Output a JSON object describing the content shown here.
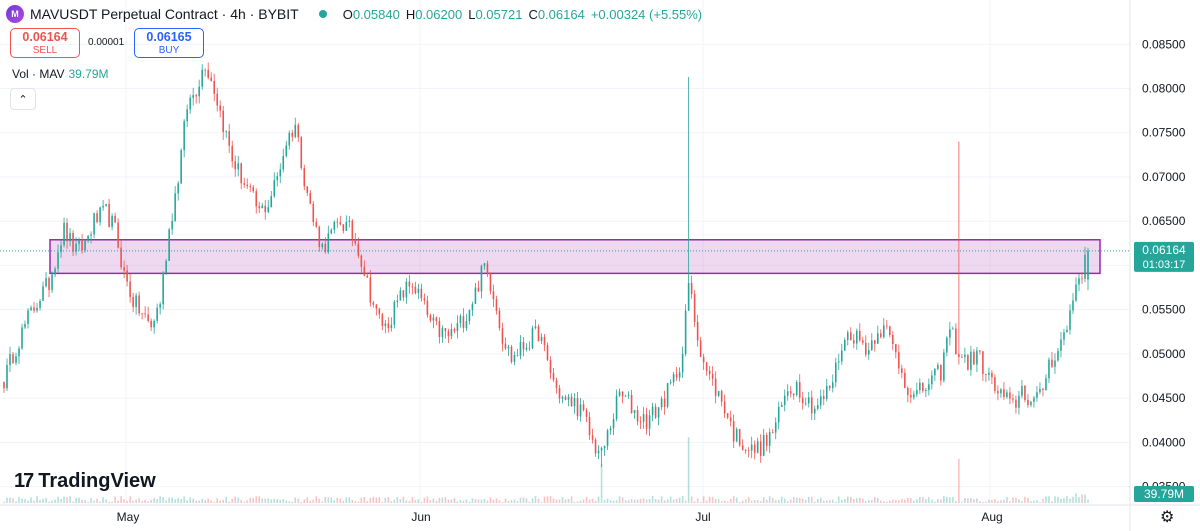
{
  "header": {
    "title": "MAVUSDT Perpetual Contract · 4h · BYBIT",
    "ohlc": [
      {
        "k": "O",
        "v": "0.05840"
      },
      {
        "k": "H",
        "v": "0.06200"
      },
      {
        "k": "L",
        "v": "0.05721"
      },
      {
        "k": "C",
        "v": "0.06164"
      }
    ],
    "change": "+0.00324 (+5.55%)"
  },
  "trade": {
    "sell_price": "0.06164",
    "sell_label": "SELL",
    "spread": "0.00001",
    "buy_price": "0.06165",
    "buy_label": "BUY"
  },
  "volume": {
    "label": "Vol · MAV",
    "value": "39.79M"
  },
  "collapse_symbol": "⌃",
  "brand": {
    "logo_mark": "17",
    "name": "TradingView"
  },
  "colors": {
    "up": "#26a69a",
    "down": "#ef5350",
    "zone_fill": "rgba(186,104,200,0.25)",
    "zone_stroke": "#9c27b0"
  },
  "chart_data": {
    "type": "candlestick",
    "ylim": [
      0.0345,
      0.0865
    ],
    "y_ticks": [
      "0.08500",
      "0.08000",
      "0.07500",
      "0.07000",
      "0.06500",
      "0.06000",
      "0.05500",
      "0.05000",
      "0.04500",
      "0.04000",
      "0.03500"
    ],
    "x_ticks": [
      "May",
      "Jun",
      "Jul",
      "Aug"
    ],
    "last_price": "0.06164",
    "countdown": "01:03:17",
    "volume_label": "39.79M",
    "zone": {
      "top": 0.0629,
      "bottom": 0.0591
    },
    "anchors": [
      [
        0,
        0.047
      ],
      [
        3,
        0.05
      ],
      [
        8,
        0.054
      ],
      [
        12,
        0.0565
      ],
      [
        15,
        0.058
      ],
      [
        18,
        0.062
      ],
      [
        20,
        0.064
      ],
      [
        24,
        0.0615
      ],
      [
        27,
        0.0625
      ],
      [
        30,
        0.065
      ],
      [
        34,
        0.066
      ],
      [
        37,
        0.064
      ],
      [
        40,
        0.059
      ],
      [
        43,
        0.056
      ],
      [
        46,
        0.0545
      ],
      [
        49,
        0.053
      ],
      [
        52,
        0.056
      ],
      [
        55,
        0.064
      ],
      [
        58,
        0.07
      ],
      [
        61,
        0.078
      ],
      [
        64,
        0.08
      ],
      [
        67,
        0.083
      ],
      [
        70,
        0.08
      ],
      [
        73,
        0.076
      ],
      [
        76,
        0.072
      ],
      [
        79,
        0.07
      ],
      [
        82,
        0.068
      ],
      [
        85,
        0.066
      ],
      [
        88,
        0.067
      ],
      [
        91,
        0.07
      ],
      [
        94,
        0.074
      ],
      [
        97,
        0.076
      ],
      [
        100,
        0.07
      ],
      [
        103,
        0.065
      ],
      [
        106,
        0.062
      ],
      [
        109,
        0.0635
      ],
      [
        112,
        0.065
      ],
      [
        115,
        0.064
      ],
      [
        118,
        0.062
      ],
      [
        121,
        0.058
      ],
      [
        124,
        0.0545
      ],
      [
        127,
        0.053
      ],
      [
        130,
        0.055
      ],
      [
        133,
        0.057
      ],
      [
        136,
        0.058
      ],
      [
        139,
        0.056
      ],
      [
        142,
        0.0535
      ],
      [
        145,
        0.0525
      ],
      [
        148,
        0.052
      ],
      [
        151,
        0.053
      ],
      [
        154,
        0.0545
      ],
      [
        157,
        0.057
      ],
      [
        160,
        0.06
      ],
      [
        163,
        0.057
      ],
      [
        166,
        0.052
      ],
      [
        169,
        0.0495
      ],
      [
        172,
        0.0505
      ],
      [
        175,
        0.0515
      ],
      [
        178,
        0.0525
      ],
      [
        181,
        0.049
      ],
      [
        184,
        0.046
      ],
      [
        187,
        0.0445
      ],
      [
        190,
        0.0445
      ],
      [
        193,
        0.043
      ],
      [
        196,
        0.04
      ],
      [
        199,
        0.0385
      ],
      [
        202,
        0.042
      ],
      [
        205,
        0.0455
      ],
      [
        208,
        0.0445
      ],
      [
        211,
        0.043
      ],
      [
        214,
        0.0425
      ],
      [
        217,
        0.0435
      ],
      [
        220,
        0.045
      ],
      [
        223,
        0.047
      ],
      [
        226,
        0.05
      ],
      [
        228,
        0.058
      ],
      [
        231,
        0.052
      ],
      [
        234,
        0.048
      ],
      [
        237,
        0.046
      ],
      [
        240,
        0.044
      ],
      [
        243,
        0.041
      ],
      [
        246,
        0.04
      ],
      [
        249,
        0.039
      ],
      [
        252,
        0.0395
      ],
      [
        255,
        0.0405
      ],
      [
        258,
        0.043
      ],
      [
        261,
        0.046
      ],
      [
        264,
        0.0465
      ],
      [
        267,
        0.045
      ],
      [
        270,
        0.044
      ],
      [
        273,
        0.045
      ],
      [
        276,
        0.047
      ],
      [
        279,
        0.051
      ],
      [
        282,
        0.0525
      ],
      [
        285,
        0.0515
      ],
      [
        288,
        0.0505
      ],
      [
        291,
        0.053
      ],
      [
        294,
        0.0525
      ],
      [
        297,
        0.05
      ],
      [
        300,
        0.047
      ],
      [
        303,
        0.045
      ],
      [
        306,
        0.046
      ],
      [
        309,
        0.047
      ],
      [
        312,
        0.048
      ],
      [
        315,
        0.053
      ],
      [
        318,
        0.05
      ],
      [
        321,
        0.049
      ],
      [
        324,
        0.05
      ],
      [
        327,
        0.048
      ],
      [
        330,
        0.046
      ],
      [
        333,
        0.045
      ],
      [
        336,
        0.044
      ],
      [
        339,
        0.046
      ],
      [
        342,
        0.0445
      ],
      [
        345,
        0.045
      ],
      [
        348,
        0.049
      ],
      [
        351,
        0.0505
      ],
      [
        354,
        0.053
      ],
      [
        357,
        0.058
      ],
      [
        360,
        0.0602
      ],
      [
        361,
        0.0616
      ]
    ],
    "spikes": [
      [
        228,
        0.0813
      ],
      [
        318,
        0.074
      ],
      [
        199,
        0.0372
      ]
    ]
  }
}
